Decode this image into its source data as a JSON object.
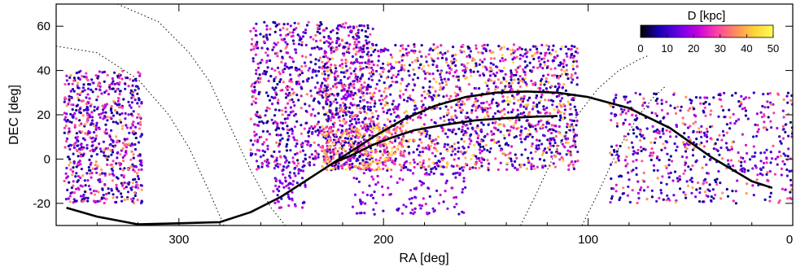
{
  "chart_data": {
    "type": "scatter",
    "title": "",
    "xlabel": "RA [deg]",
    "ylabel": "DEC [deg]",
    "xlim": [
      360,
      0
    ],
    "ylim": [
      -30,
      70
    ],
    "x_reversed": true,
    "xticks": [
      300,
      200,
      100,
      0
    ],
    "xtick_labels": [
      "300",
      "200",
      "100",
      "0"
    ],
    "yticks": [
      -20,
      0,
      20,
      40,
      60
    ],
    "ytick_labels": [
      "-20",
      "0",
      "20",
      "40",
      "60"
    ],
    "grid": false,
    "colorbar": {
      "title": "D [kpc]",
      "range": [
        0,
        50
      ],
      "ticks": [
        "0",
        "10",
        "20",
        "30",
        "40",
        "50"
      ],
      "colormap": [
        "#000000",
        "#1a00b5",
        "#6a00e6",
        "#c200e0",
        "#ff3fa8",
        "#ff8a60",
        "#ffd23a",
        "#ffff55"
      ],
      "placement": "top-right"
    },
    "point_regions": [
      {
        "ra": [
          318,
          356
        ],
        "dec": [
          -20,
          40
        ],
        "distance": [
          5,
          40
        ],
        "count": 700
      },
      {
        "ra": [
          205,
          265
        ],
        "dec": [
          -5,
          62
        ],
        "distance": [
          5,
          35
        ],
        "count": 900
      },
      {
        "ra": [
          105,
          230
        ],
        "dec": [
          -5,
          52
        ],
        "distance": [
          5,
          45
        ],
        "count": 1800
      },
      {
        "ra": [
          190,
          230
        ],
        "dec": [
          -5,
          15
        ],
        "distance": [
          25,
          50
        ],
        "count": 250
      },
      {
        "ra": [
          0,
          90
        ],
        "dec": [
          -20,
          30
        ],
        "distance": [
          5,
          40
        ],
        "count": 600
      },
      {
        "ra": [
          238,
          255
        ],
        "dec": [
          -22,
          -5
        ],
        "distance": [
          10,
          25
        ],
        "count": 60
      },
      {
        "ra": [
          160,
          215
        ],
        "dec": [
          -25,
          -5
        ],
        "distance": [
          10,
          25
        ],
        "count": 120
      }
    ],
    "series": [
      {
        "style": "solid-line",
        "x": [
          355,
          340,
          320,
          300,
          280,
          265,
          250,
          235,
          220,
          205,
          190,
          175,
          160,
          145,
          130,
          115,
          100,
          80,
          60,
          40,
          20,
          10
        ],
        "y": [
          -22,
          -26,
          -29.5,
          -29,
          -28.5,
          -24,
          -17,
          -8,
          1,
          10,
          18,
          24,
          28,
          30,
          30.5,
          30,
          28,
          23,
          14,
          1,
          -10,
          -13
        ]
      },
      {
        "style": "solid-line",
        "x": [
          225,
          215,
          205,
          195,
          185,
          170,
          155,
          140,
          125,
          115
        ],
        "y": [
          -2,
          2,
          6.5,
          10,
          13,
          15.5,
          17.5,
          18.5,
          19.2,
          19.4
        ]
      },
      {
        "style": "dotted-line",
        "x": [
          330,
          310,
          295,
          285,
          275,
          265,
          255,
          248
        ],
        "y": [
          70,
          62,
          48,
          35,
          15,
          -5,
          -22,
          -30
        ]
      },
      {
        "style": "dotted-line",
        "x": [
          360,
          340,
          320,
          305,
          295,
          285,
          278
        ],
        "y": [
          51,
          48,
          36,
          20,
          5,
          -15,
          -30
        ]
      },
      {
        "style": "dotted-line",
        "x": [
          133,
          125,
          115,
          105,
          95,
          85,
          75,
          70
        ],
        "y": [
          -30,
          -15,
          5,
          20,
          32,
          40,
          45,
          47
        ]
      },
      {
        "style": "dotted-line",
        "x": [
          103,
          95,
          85,
          75,
          68,
          62
        ],
        "y": [
          -30,
          -15,
          5,
          20,
          28,
          33
        ]
      }
    ]
  }
}
